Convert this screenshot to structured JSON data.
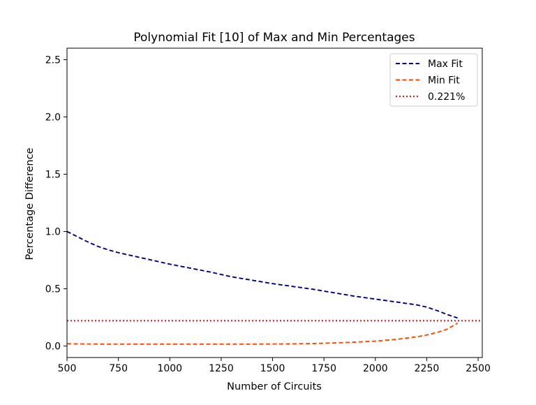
{
  "chart_data": {
    "type": "line",
    "title": "Polynomial Fit [10] of Max and Min Percentages",
    "xlabel": "Number of Circuits",
    "ylabel": "Percentage Difference",
    "xlim": [
      500,
      2520
    ],
    "ylim": [
      -0.1,
      2.6
    ],
    "xticks": [
      500,
      750,
      1000,
      1250,
      1500,
      1750,
      2000,
      2250,
      2500
    ],
    "yticks": [
      0.0,
      0.5,
      1.0,
      1.5,
      2.0,
      2.5
    ],
    "xtick_labels": [
      "500",
      "750",
      "1000",
      "1250",
      "1500",
      "1750",
      "2000",
      "2250",
      "2500"
    ],
    "ytick_labels": [
      "0.0",
      "0.5",
      "1.0",
      "1.5",
      "2.0",
      "2.5"
    ],
    "grid": false,
    "legend_position": "top-right",
    "series": [
      {
        "name": "Max Fit",
        "color": "#000080",
        "style": "dashed",
        "x": [
          500,
          550,
          600,
          650,
          700,
          750,
          800,
          900,
          1000,
          1100,
          1200,
          1300,
          1400,
          1500,
          1600,
          1700,
          1800,
          1900,
          2000,
          2100,
          2200,
          2250,
          2300,
          2350,
          2400
        ],
        "y": [
          1.0,
          0.955,
          0.91,
          0.87,
          0.84,
          0.815,
          0.795,
          0.755,
          0.715,
          0.68,
          0.645,
          0.605,
          0.575,
          0.545,
          0.52,
          0.495,
          0.465,
          0.435,
          0.41,
          0.385,
          0.36,
          0.34,
          0.31,
          0.275,
          0.245
        ]
      },
      {
        "name": "Min Fit",
        "color": "#FF4500",
        "style": "dashed",
        "x": [
          500,
          600,
          700,
          800,
          1000,
          1200,
          1400,
          1500,
          1600,
          1700,
          1800,
          1900,
          2000,
          2100,
          2200,
          2250,
          2300,
          2350,
          2400
        ],
        "y": [
          0.02,
          0.018,
          0.017,
          0.017,
          0.017,
          0.017,
          0.017,
          0.018,
          0.019,
          0.022,
          0.027,
          0.034,
          0.043,
          0.058,
          0.08,
          0.097,
          0.118,
          0.148,
          0.2
        ]
      },
      {
        "name": "0.221%",
        "color": "#CC2222",
        "style": "dotted",
        "x": [
          500,
          2520
        ],
        "y": [
          0.221,
          0.221
        ]
      }
    ]
  }
}
